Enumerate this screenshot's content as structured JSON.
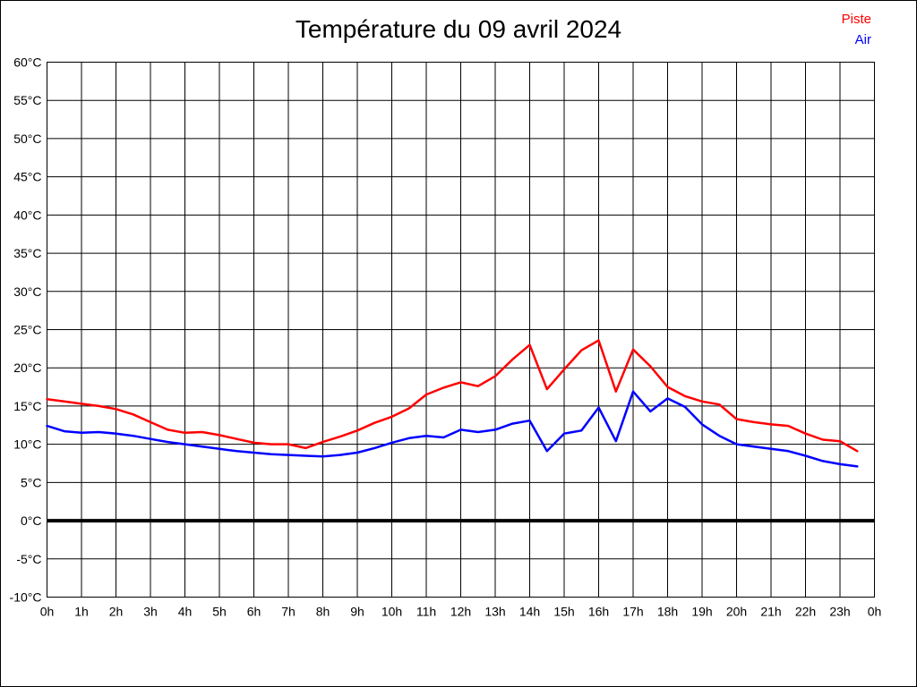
{
  "title": "Température du 09 avril 2024",
  "legend": {
    "items": [
      {
        "label": "Piste",
        "color": "#ff0000"
      },
      {
        "label": "Air",
        "color": "#0000ff"
      }
    ],
    "position": "top-right"
  },
  "axes": {
    "y_tick_labels": [
      "-10°C",
      "-5°C",
      "0°C",
      "5°C",
      "10°C",
      "15°C",
      "20°C",
      "25°C",
      "30°C",
      "35°C",
      "40°C",
      "45°C",
      "50°C",
      "55°C",
      "60°C"
    ],
    "x_tick_labels": [
      "0h",
      "1h",
      "2h",
      "3h",
      "4h",
      "5h",
      "6h",
      "7h",
      "8h",
      "9h",
      "10h",
      "11h",
      "12h",
      "13h",
      "14h",
      "15h",
      "16h",
      "17h",
      "18h",
      "19h",
      "20h",
      "21h",
      "22h",
      "23h",
      "0h"
    ]
  },
  "chart_data": {
    "type": "line",
    "title": "Température du 09 avril 2024",
    "xlabel": "",
    "ylabel": "",
    "xlim": [
      0,
      24
    ],
    "ylim": [
      -10,
      60
    ],
    "y_tick_step": 5,
    "y_tick_suffix": "°C",
    "grid": true,
    "zero_line_at": 0,
    "legend_position": "top-right",
    "x_hours": [
      0,
      0.5,
      1,
      1.5,
      2,
      2.5,
      3,
      3.5,
      4,
      4.5,
      5,
      5.5,
      6,
      6.5,
      7,
      7.5,
      8,
      8.5,
      9,
      9.5,
      10,
      10.5,
      11,
      11.5,
      12,
      12.5,
      13,
      13.5,
      14,
      14.5,
      15,
      15.5,
      16,
      16.5,
      17,
      17.5,
      18,
      18.5,
      19,
      19.5,
      20,
      20.5,
      21,
      21.5,
      22,
      22.5,
      23,
      23.5
    ],
    "series": [
      {
        "name": "Piste",
        "color": "#ff0000",
        "values": [
          15.9,
          15.6,
          15.3,
          15.0,
          14.6,
          13.9,
          12.9,
          11.9,
          11.5,
          11.6,
          11.2,
          10.7,
          10.2,
          10.0,
          10.0,
          9.5,
          10.3,
          11.0,
          11.8,
          12.8,
          13.6,
          14.7,
          16.5,
          17.4,
          18.1,
          17.6,
          18.9,
          21.1,
          23.0,
          17.2,
          19.8,
          22.3,
          23.6,
          16.9,
          22.4,
          20.2,
          17.5,
          16.3,
          15.6,
          15.2,
          13.3,
          12.9,
          12.6,
          12.4,
          11.4,
          10.6,
          10.4,
          9.1
        ]
      },
      {
        "name": "Air",
        "color": "#0000ff",
        "values": [
          12.4,
          11.7,
          11.5,
          11.6,
          11.4,
          11.1,
          10.7,
          10.3,
          10.0,
          9.7,
          9.4,
          9.1,
          8.9,
          8.7,
          8.6,
          8.5,
          8.4,
          8.6,
          8.9,
          9.5,
          10.2,
          10.8,
          11.1,
          10.9,
          11.9,
          11.6,
          11.9,
          12.7,
          13.1,
          9.1,
          11.4,
          11.8,
          14.8,
          10.4,
          16.9,
          14.3,
          16.0,
          14.9,
          12.6,
          11.1,
          10.0,
          9.7,
          9.4,
          9.1,
          8.5,
          7.8,
          7.4,
          7.1
        ]
      }
    ]
  },
  "colors": {
    "background": "#ffffff",
    "grid": "#000000",
    "axis_text": "#000000",
    "zero_line": "#000000",
    "border": "#000000"
  }
}
